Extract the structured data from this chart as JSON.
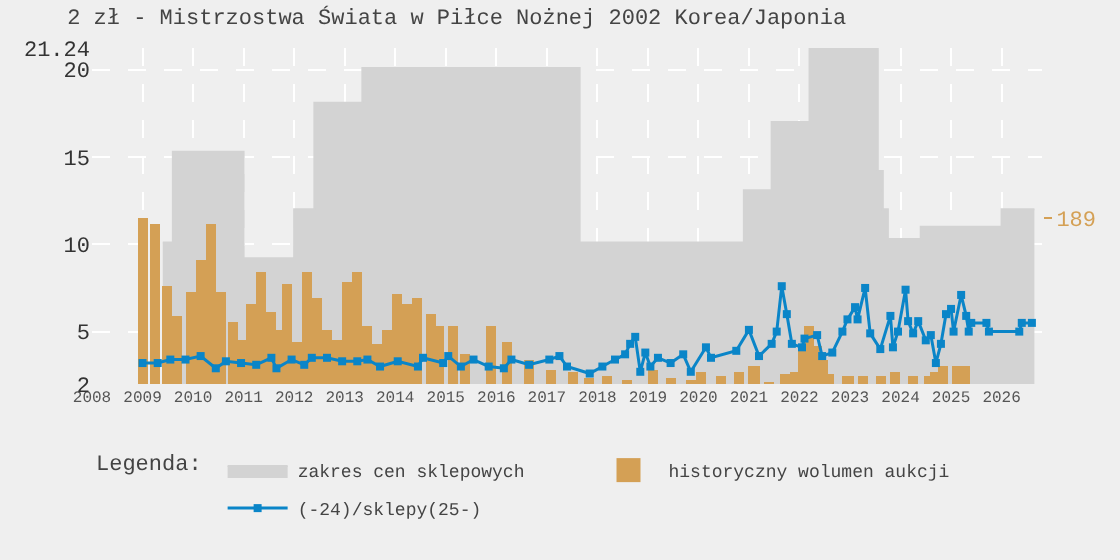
{
  "chart_data": {
    "type": "line",
    "title": "2 zł - Mistrzostwa Świata w Piłce Nożnej 2002 Korea/Japonia",
    "legend_title": "Legenda:",
    "legend": "bottom",
    "grid": true,
    "line_style": "solid",
    "xlim": [
      2008,
      2026.8
    ],
    "xticks": [
      2008,
      2009,
      2010,
      2011,
      2012,
      2013,
      2014,
      2015,
      2016,
      2017,
      2018,
      2019,
      2020,
      2021,
      2022,
      2023,
      2024,
      2025,
      2026
    ],
    "ylim": [
      2,
      21.24
    ],
    "yticks": [
      2,
      5,
      10,
      15,
      20,
      21.24
    ],
    "y2lim": [
      0,
      383
    ],
    "y2ticks": [
      189
    ],
    "series": [
      {
        "name": "zakres cen sklepowych",
        "type": "area",
        "color": "#d3d3d3",
        "x": [
          2009.4,
          2009.55,
          2009.6,
          2010.95,
          2011.0,
          2011.95,
          2012.0,
          2012.35,
          2012.4,
          2013.25,
          2013.35,
          2017.6,
          2017.65,
          2020.85,
          2020.9,
          2021.4,
          2021.45,
          2022.15,
          2022.2,
          2023.45,
          2023.55,
          2023.65,
          2023.75,
          2024.35,
          2024.4,
          2025.95,
          2026.0,
          2026.65
        ],
        "values": [
          10.1,
          10.1,
          15.3,
          15.3,
          9.2,
          9.2,
          12,
          12,
          18.1,
          18.1,
          20.1,
          20.1,
          10.1,
          10.1,
          13.1,
          13.1,
          17.0,
          17.0,
          21.2,
          21.2,
          14.2,
          12,
          10.3,
          10.3,
          11.0,
          11.0,
          12.0,
          12.0
        ]
      },
      {
        "name": "historyczny wolumen aukcji",
        "type": "bar",
        "axis": "y2",
        "color": "#d4a055",
        "x": [
          2009.0,
          2009.25,
          2009.5,
          2009.7,
          2009.95,
          2010.15,
          2010.35,
          2010.55,
          2010.8,
          2010.95,
          2011.15,
          2011.35,
          2011.55,
          2011.7,
          2011.85,
          2012.05,
          2012.25,
          2012.45,
          2012.65,
          2012.85,
          2013.05,
          2013.25,
          2013.45,
          2013.65,
          2013.85,
          2014.05,
          2014.25,
          2014.45,
          2014.69,
          2014.85,
          2015.13,
          2015.4,
          2015.9,
          2016.23,
          2016.64,
          2017.1,
          2017.5,
          2017.85,
          2018.2,
          2018.6,
          2019.1,
          2019.47,
          2019.84,
          2020.06,
          2020.43,
          2020.8,
          2021.1,
          2021.4,
          2021.7,
          2021.9,
          2022.08,
          2022.2,
          2022.35,
          2022.45,
          2022.6,
          2022.96,
          2023.25,
          2023.6,
          2023.9,
          2024.25,
          2024.55,
          2024.7,
          2024.84,
          2025.1,
          2025.28
        ],
        "values": [
          189,
          183,
          112,
          77,
          106,
          142,
          183,
          106,
          71,
          51,
          91,
          128,
          81,
          61,
          114,
          47,
          128,
          97,
          61,
          51,
          116,
          128,
          65,
          45,
          61,
          102,
          91,
          99,
          79,
          65,
          65,
          35,
          65,
          47,
          27,
          16,
          14,
          6,
          10,
          4,
          16,
          6,
          4,
          14,
          8,
          14,
          21,
          2,
          12,
          13,
          43,
          67,
          43,
          27,
          12,
          10,
          8,
          8,
          14,
          10,
          8,
          14,
          20,
          21,
          21
        ]
      },
      {
        "name": "(-24)/sklepy(25-)",
        "marker": "square",
        "color": "#0a85c8",
        "x": [
          2009.0,
          2009.3,
          2009.55,
          2009.85,
          2010.15,
          2010.45,
          2010.65,
          2010.95,
          2011.25,
          2011.55,
          2011.65,
          2011.95,
          2012.2,
          2012.35,
          2012.65,
          2012.95,
          2013.25,
          2013.45,
          2013.7,
          2014.05,
          2014.45,
          2014.55,
          2014.95,
          2015.05,
          2015.3,
          2015.55,
          2015.85,
          2016.15,
          2016.3,
          2016.65,
          2017.05,
          2017.25,
          2017.4,
          2017.85,
          2018.1,
          2018.35,
          2018.55,
          2018.65,
          2018.75,
          2018.85,
          2018.95,
          2019.05,
          2019.2,
          2019.45,
          2019.7,
          2019.85,
          2020.15,
          2020.25,
          2020.75,
          2021.0,
          2021.2,
          2021.45,
          2021.55,
          2021.65,
          2021.75,
          2021.85,
          2022.05,
          2022.1,
          2022.35,
          2022.45,
          2022.65,
          2022.85,
          2022.95,
          2023.1,
          2023.15,
          2023.3,
          2023.4,
          2023.6,
          2023.8,
          2023.85,
          2023.95,
          2024.1,
          2024.15,
          2024.25,
          2024.35,
          2024.5,
          2024.6,
          2024.7,
          2024.8,
          2024.9,
          2025.0,
          2025.05,
          2025.2,
          2025.3,
          2025.35,
          2025.4,
          2025.7,
          2025.75,
          2026.35,
          2026.4,
          2026.6
        ],
        "values": [
          3.2,
          3.2,
          3.4,
          3.4,
          3.6,
          2.9,
          3.3,
          3.2,
          3.1,
          3.5,
          2.9,
          3.4,
          3.1,
          3.5,
          3.5,
          3.3,
          3.3,
          3.4,
          3.0,
          3.3,
          3.0,
          3.5,
          3.2,
          3.6,
          3.0,
          3.4,
          3.0,
          2.9,
          3.4,
          3.1,
          3.4,
          3.6,
          3.0,
          2.6,
          3.0,
          3.4,
          3.7,
          4.3,
          4.7,
          2.7,
          3.8,
          3.0,
          3.5,
          3.2,
          3.7,
          2.7,
          4.1,
          3.5,
          3.9,
          5.1,
          3.6,
          4.3,
          5.0,
          7.6,
          6.0,
          4.3,
          4.1,
          4.6,
          4.8,
          3.6,
          3.8,
          5.0,
          5.7,
          6.4,
          5.7,
          7.5,
          4.9,
          4.0,
          5.9,
          4.1,
          5.0,
          7.4,
          5.6,
          4.9,
          5.6,
          4.5,
          4.8,
          3.2,
          4.3,
          6.0,
          6.3,
          5.0,
          7.1,
          5.9,
          5.0,
          5.5,
          5.5,
          5.0,
          5.0,
          5.5,
          5.5
        ]
      }
    ]
  }
}
